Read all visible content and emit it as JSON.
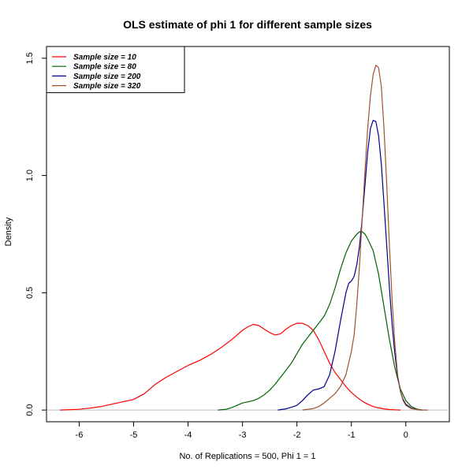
{
  "chart_data": {
    "type": "line",
    "title": "OLS estimate of phi 1 for different sample sizes",
    "xlabel": "No. of Replications = 500, Phi 1 = 1",
    "ylabel": "Density",
    "xlim": [
      -6.6,
      0.8
    ],
    "ylim": [
      -0.05,
      1.55
    ],
    "x_ticks": [
      -6,
      -5,
      -4,
      -3,
      -2,
      -1,
      0
    ],
    "x_tick_labels": [
      "-6",
      "-5",
      "-4",
      "-3",
      "-2",
      "-1",
      "0"
    ],
    "y_ticks": [
      0.0,
      0.5,
      1.0,
      1.5
    ],
    "y_tick_labels": [
      "0.0",
      "0.5",
      "1.0",
      "1.5"
    ],
    "grid": false,
    "baseline_y": 0,
    "baseline_color": "#bebebe",
    "legend_position": "top-left",
    "series": [
      {
        "name": "Sample size =  10",
        "color": "#ff0000",
        "x": [
          -6.35,
          -6.0,
          -5.8,
          -5.6,
          -5.4,
          -5.2,
          -5.0,
          -4.8,
          -4.6,
          -4.4,
          -4.2,
          -4.0,
          -3.8,
          -3.6,
          -3.4,
          -3.2,
          -3.0,
          -2.9,
          -2.8,
          -2.7,
          -2.6,
          -2.5,
          -2.4,
          -2.3,
          -2.2,
          -2.1,
          -2.0,
          -1.9,
          -1.8,
          -1.7,
          -1.6,
          -1.5,
          -1.4,
          -1.3,
          -1.2,
          -1.1,
          -1.0,
          -0.9,
          -0.8,
          -0.7,
          -0.6,
          -0.5,
          -0.4,
          -0.3,
          -0.2,
          -0.1
        ],
        "y": [
          0.0,
          0.003,
          0.008,
          0.015,
          0.025,
          0.035,
          0.045,
          0.07,
          0.11,
          0.14,
          0.165,
          0.19,
          0.21,
          0.235,
          0.265,
          0.3,
          0.34,
          0.355,
          0.365,
          0.36,
          0.345,
          0.33,
          0.32,
          0.325,
          0.345,
          0.36,
          0.37,
          0.37,
          0.36,
          0.34,
          0.3,
          0.25,
          0.2,
          0.16,
          0.13,
          0.1,
          0.075,
          0.055,
          0.038,
          0.025,
          0.015,
          0.009,
          0.005,
          0.002,
          0.001,
          0.0
        ]
      },
      {
        "name": "Sample size =  80",
        "color": "#006400",
        "x": [
          -3.45,
          -3.3,
          -3.2,
          -3.1,
          -3.0,
          -2.9,
          -2.8,
          -2.7,
          -2.6,
          -2.5,
          -2.4,
          -2.3,
          -2.2,
          -2.1,
          -2.0,
          -1.9,
          -1.8,
          -1.7,
          -1.6,
          -1.5,
          -1.4,
          -1.3,
          -1.2,
          -1.1,
          -1.0,
          -0.9,
          -0.85,
          -0.8,
          -0.75,
          -0.7,
          -0.6,
          -0.5,
          -0.4,
          -0.3,
          -0.2,
          -0.1,
          0.0,
          0.1,
          0.2,
          0.3
        ],
        "y": [
          0.0,
          0.003,
          0.01,
          0.02,
          0.03,
          0.035,
          0.04,
          0.05,
          0.065,
          0.085,
          0.11,
          0.14,
          0.17,
          0.2,
          0.24,
          0.28,
          0.31,
          0.34,
          0.37,
          0.4,
          0.45,
          0.52,
          0.6,
          0.67,
          0.72,
          0.75,
          0.76,
          0.76,
          0.75,
          0.73,
          0.68,
          0.58,
          0.44,
          0.3,
          0.18,
          0.09,
          0.04,
          0.015,
          0.004,
          0.0
        ]
      },
      {
        "name": "Sample size =  200",
        "color": "#00008b",
        "x": [
          -2.35,
          -2.2,
          -2.1,
          -2.0,
          -1.9,
          -1.8,
          -1.7,
          -1.6,
          -1.5,
          -1.4,
          -1.3,
          -1.2,
          -1.1,
          -1.05,
          -1.0,
          -0.95,
          -0.9,
          -0.85,
          -0.8,
          -0.75,
          -0.7,
          -0.65,
          -0.6,
          -0.55,
          -0.5,
          -0.45,
          -0.4,
          -0.35,
          -0.3,
          -0.25,
          -0.2,
          -0.15,
          -0.1,
          -0.05,
          0.0,
          0.1,
          0.2,
          0.3
        ],
        "y": [
          0.0,
          0.005,
          0.012,
          0.02,
          0.04,
          0.065,
          0.085,
          0.09,
          0.1,
          0.15,
          0.25,
          0.38,
          0.5,
          0.54,
          0.55,
          0.57,
          0.62,
          0.7,
          0.82,
          0.96,
          1.1,
          1.2,
          1.235,
          1.23,
          1.17,
          1.05,
          0.88,
          0.7,
          0.52,
          0.36,
          0.24,
          0.14,
          0.08,
          0.045,
          0.025,
          0.008,
          0.002,
          0.0
        ]
      },
      {
        "name": "Sample size =  320",
        "color": "#a0522d",
        "x": [
          -1.9,
          -1.7,
          -1.6,
          -1.5,
          -1.4,
          -1.3,
          -1.2,
          -1.1,
          -1.0,
          -0.95,
          -0.9,
          -0.85,
          -0.8,
          -0.75,
          -0.7,
          -0.65,
          -0.6,
          -0.55,
          -0.5,
          -0.45,
          -0.4,
          -0.35,
          -0.3,
          -0.25,
          -0.2,
          -0.15,
          -0.1,
          -0.05,
          0.0,
          0.1,
          0.2,
          0.3,
          0.4
        ],
        "y": [
          0.0,
          0.006,
          0.015,
          0.03,
          0.05,
          0.07,
          0.1,
          0.15,
          0.25,
          0.32,
          0.45,
          0.62,
          0.82,
          1.02,
          1.2,
          1.34,
          1.43,
          1.47,
          1.46,
          1.38,
          1.2,
          0.96,
          0.7,
          0.46,
          0.28,
          0.15,
          0.08,
          0.04,
          0.02,
          0.006,
          0.002,
          0.0005,
          0.0
        ]
      }
    ]
  }
}
